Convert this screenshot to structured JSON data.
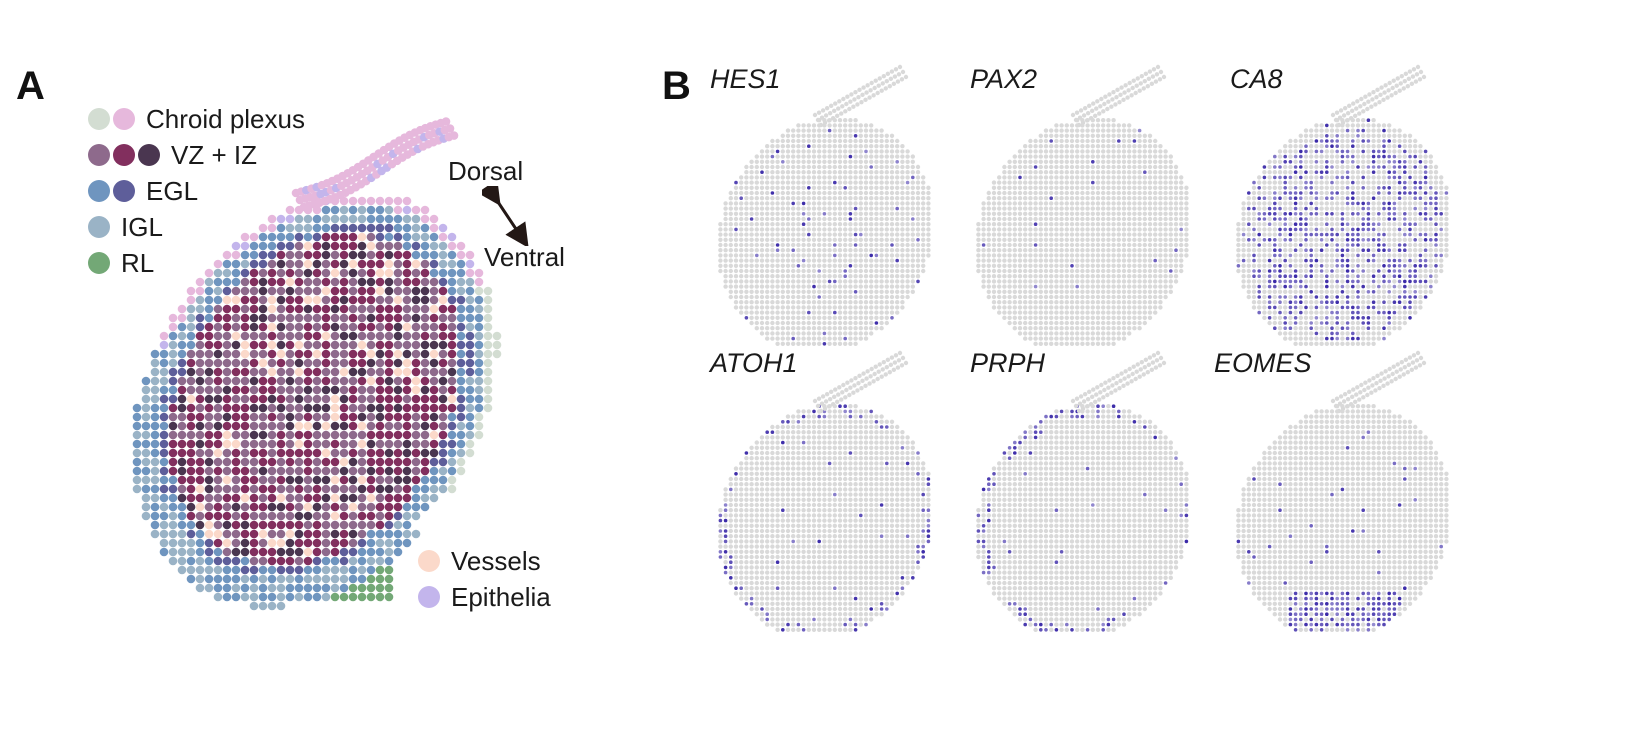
{
  "panels": {
    "a": {
      "letter": "A",
      "legend": [
        {
          "label": "Chroid plexus",
          "colors": [
            "#d3ddd2",
            "#e6b8dc"
          ]
        },
        {
          "label": "VZ + IZ",
          "colors": [
            "#8e6a8c",
            "#822f5e",
            "#4a3650"
          ]
        },
        {
          "label": "EGL",
          "colors": [
            "#6f95bf",
            "#5e5e9a"
          ]
        },
        {
          "label": "IGL",
          "colors": [
            "#9ab3c6"
          ]
        },
        {
          "label": "RL",
          "colors": [
            "#73a876"
          ]
        }
      ],
      "extra_legend": [
        {
          "label": "Vessels",
          "color": "#fbd9ca"
        },
        {
          "label": "Epithelia",
          "color": "#c3b5ec"
        }
      ],
      "orientation": {
        "dorsal": "Dorsal",
        "ventral": "Ventral"
      }
    },
    "b": {
      "letter": "B",
      "genes": [
        {
          "name": "HES1",
          "pattern": "sparse"
        },
        {
          "name": "PAX2",
          "pattern": "very-sparse"
        },
        {
          "name": "CA8",
          "pattern": "dense"
        },
        {
          "name": "ATOH1",
          "pattern": "edge"
        },
        {
          "name": "PRPH",
          "pattern": "edge-left"
        },
        {
          "name": "EOMES",
          "pattern": "bottom"
        }
      ]
    }
  },
  "colors": {
    "background_spot": "#d9d9d9",
    "expression": "#3b2aa8"
  }
}
